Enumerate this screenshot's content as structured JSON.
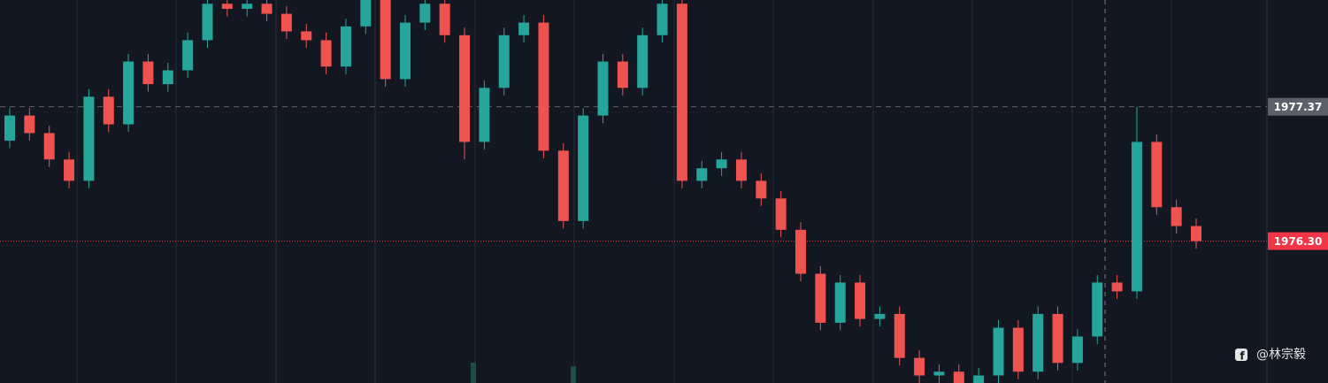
{
  "chart_data": {
    "type": "candlestick",
    "up_color": "#26a69a",
    "down_color": "#ef5350",
    "ylim": [
      1975.17,
      1978.22
    ],
    "open": [
      1977.1,
      1977.3,
      1977.16,
      1976.95,
      1976.78,
      1977.45,
      1977.23,
      1977.73,
      1977.55,
      1977.66,
      1977.9,
      1978.19,
      1978.15,
      1978.19,
      1978.11,
      1977.97,
      1977.9,
      1977.69,
      1978.01,
      1978.22,
      1977.59,
      1978.04,
      1978.19,
      1977.94,
      1977.09,
      1977.52,
      1977.94,
      1978.04,
      1977.02,
      1976.46,
      1977.3,
      1977.73,
      1977.52,
      1977.94,
      1978.19,
      1976.78,
      1976.88,
      1976.95,
      1976.78,
      1976.64,
      1976.39,
      1976.04,
      1975.65,
      1975.97,
      1975.68,
      1975.72,
      1975.37,
      1975.23,
      1975.26,
      1975.12,
      1975.23,
      1975.61,
      1975.26,
      1975.72,
      1975.33,
      1975.54,
      1975.97,
      1975.9,
      1977.09,
      1976.57,
      1976.42
    ],
    "high": [
      1977.36,
      1977.36,
      1977.22,
      1977.01,
      1977.51,
      1977.51,
      1977.79,
      1977.79,
      1977.72,
      1977.96,
      1978.25,
      1978.25,
      1978.25,
      1978.25,
      1978.17,
      1978.03,
      1977.96,
      1978.07,
      1978.28,
      1978.28,
      1978.1,
      1978.25,
      1978.25,
      1978.0,
      1977.58,
      1978.0,
      1978.1,
      1978.1,
      1977.08,
      1977.36,
      1977.79,
      1977.79,
      1978.0,
      1978.25,
      1978.25,
      1976.94,
      1977.01,
      1977.01,
      1976.84,
      1976.7,
      1976.45,
      1976.1,
      1976.03,
      1976.03,
      1975.78,
      1975.78,
      1975.43,
      1975.32,
      1975.32,
      1975.29,
      1975.67,
      1975.67,
      1975.78,
      1975.78,
      1975.6,
      1976.03,
      1976.03,
      1977.37,
      1977.15,
      1976.63,
      1976.48
    ],
    "low": [
      1977.04,
      1977.1,
      1976.89,
      1976.72,
      1976.72,
      1977.17,
      1977.17,
      1977.49,
      1977.49,
      1977.6,
      1977.84,
      1978.09,
      1978.09,
      1978.05,
      1977.91,
      1977.84,
      1977.63,
      1977.63,
      1977.95,
      1977.53,
      1977.53,
      1977.98,
      1977.88,
      1976.95,
      1977.03,
      1977.46,
      1977.88,
      1976.96,
      1976.4,
      1976.4,
      1977.24,
      1977.46,
      1977.46,
      1977.88,
      1976.72,
      1976.72,
      1976.82,
      1976.72,
      1976.58,
      1976.33,
      1975.98,
      1975.59,
      1975.59,
      1975.62,
      1975.62,
      1975.31,
      1975.17,
      1975.17,
      1975.06,
      1975.06,
      1975.17,
      1975.2,
      1975.2,
      1975.27,
      1975.27,
      1975.48,
      1975.84,
      1975.84,
      1976.51,
      1976.36,
      1976.24
    ],
    "close": [
      1977.3,
      1977.16,
      1976.95,
      1976.78,
      1977.45,
      1977.23,
      1977.73,
      1977.55,
      1977.66,
      1977.9,
      1978.19,
      1978.15,
      1978.19,
      1978.11,
      1977.97,
      1977.9,
      1977.69,
      1978.01,
      1978.22,
      1977.59,
      1978.04,
      1978.19,
      1977.94,
      1977.09,
      1977.52,
      1977.94,
      1978.04,
      1977.02,
      1976.46,
      1977.3,
      1977.73,
      1977.52,
      1977.94,
      1978.19,
      1976.78,
      1976.88,
      1976.95,
      1976.78,
      1976.64,
      1976.39,
      1976.04,
      1975.65,
      1975.97,
      1975.68,
      1975.72,
      1975.37,
      1975.23,
      1975.26,
      1975.12,
      1975.23,
      1975.61,
      1975.26,
      1975.72,
      1975.33,
      1975.54,
      1975.97,
      1975.9,
      1977.09,
      1976.57,
      1976.42,
      1976.3
    ],
    "price_lines": [
      {
        "price": 1977.37,
        "color": "#5d606b",
        "dash": "6 5"
      },
      {
        "price": {
          "value": 1976.3,
          "label": "1976.30"
        },
        "color": "#f23645",
        "dash": "1 2"
      }
    ],
    "watermark": "@林宗毅"
  }
}
